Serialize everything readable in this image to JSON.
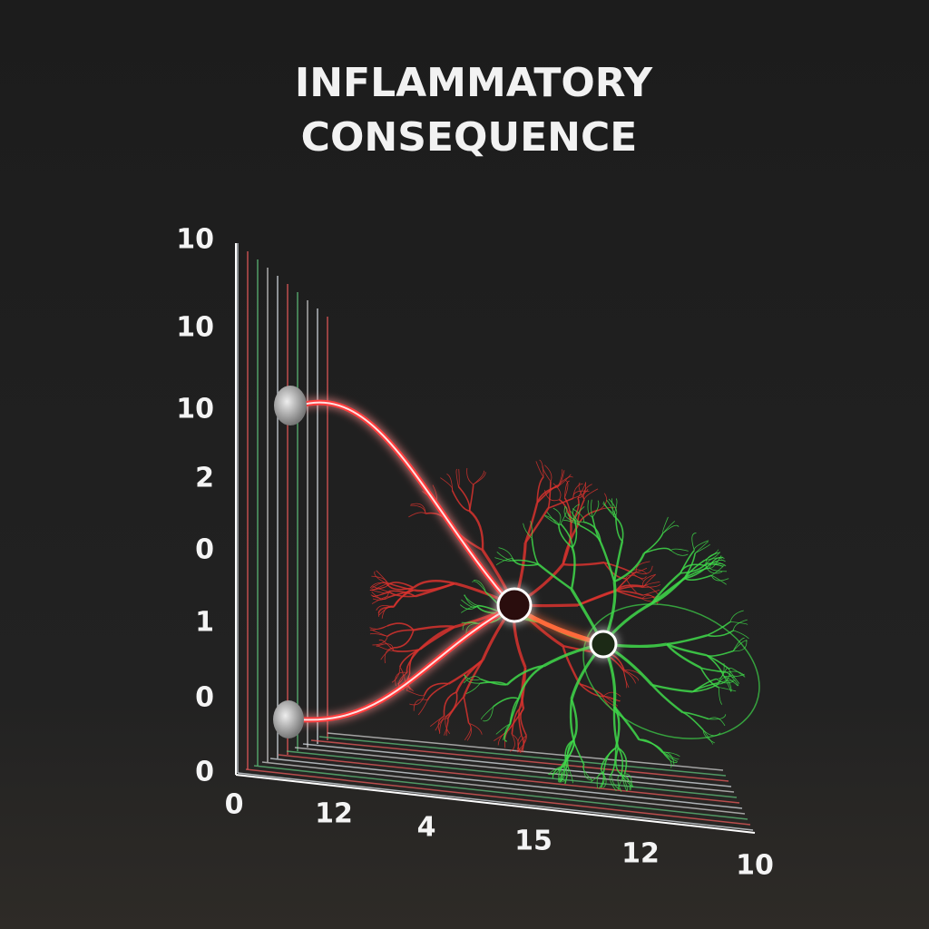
{
  "header": {
    "title": [
      "INFLAMMATORY",
      "CONSEQUENCE"
    ]
  },
  "axes": {
    "y_labels": [
      "10",
      "10",
      "10",
      "2",
      "0",
      "1",
      "0",
      "0"
    ],
    "x_labels": [
      "0",
      "12",
      "4",
      "15",
      "12",
      "10"
    ]
  }
}
